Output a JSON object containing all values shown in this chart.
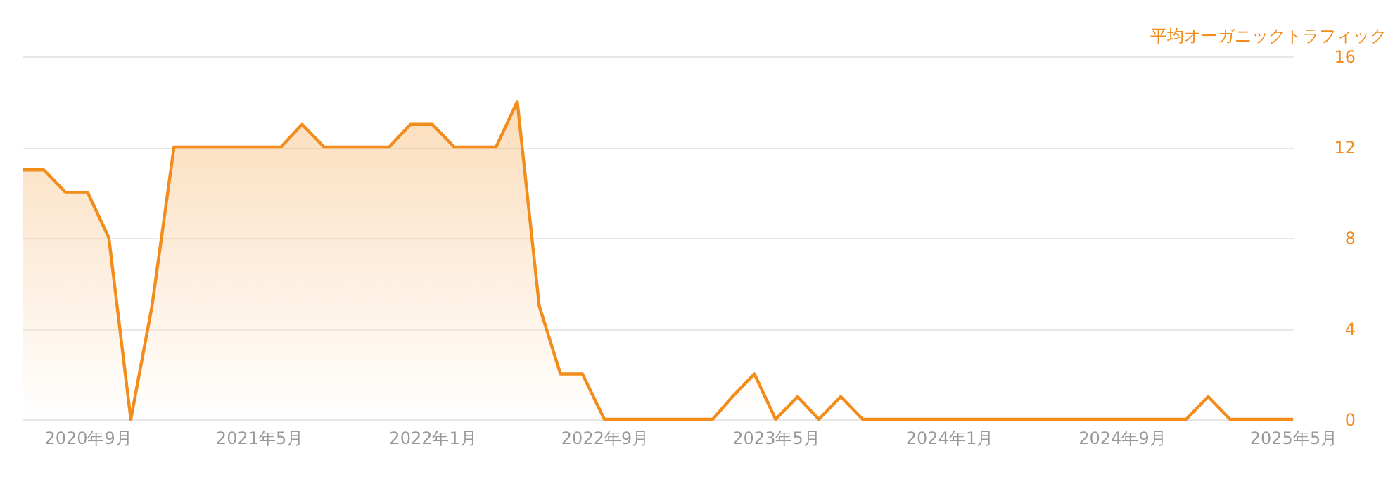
{
  "chart_data": {
    "type": "area",
    "ylabel": "平均オーガニックトラフィック",
    "x": [
      "2020-06",
      "2020-07",
      "2020-08",
      "2020-09",
      "2020-10",
      "2020-11",
      "2020-12",
      "2021-01",
      "2021-02",
      "2021-03",
      "2021-04",
      "2021-05",
      "2021-06",
      "2021-07",
      "2021-08",
      "2021-09",
      "2021-10",
      "2021-11",
      "2021-12",
      "2022-01",
      "2022-02",
      "2022-03",
      "2022-04",
      "2022-05",
      "2022-06",
      "2022-07",
      "2022-08",
      "2022-09",
      "2022-10",
      "2022-11",
      "2022-12",
      "2023-01",
      "2023-02",
      "2023-03",
      "2023-04",
      "2023-05",
      "2023-06",
      "2023-07",
      "2023-08",
      "2023-09",
      "2023-10",
      "2023-11",
      "2023-12",
      "2024-01",
      "2024-02",
      "2024-03",
      "2024-04",
      "2024-05",
      "2024-06",
      "2024-07",
      "2024-08",
      "2024-09",
      "2024-10",
      "2024-11",
      "2024-12",
      "2025-01",
      "2025-02",
      "2025-03",
      "2025-04",
      "2025-05"
    ],
    "series": [
      {
        "color": "#f28c1b",
        "values": [
          11,
          11,
          10,
          10,
          8,
          0,
          5,
          12,
          12,
          12,
          12,
          12,
          12,
          13,
          12,
          12,
          12,
          12,
          13,
          13,
          12,
          12,
          12,
          14,
          5,
          2,
          2,
          0,
          0,
          0,
          0,
          0,
          0,
          1,
          2,
          0,
          1,
          0,
          1,
          0,
          0,
          0,
          0,
          0,
          0,
          0,
          0,
          0,
          0,
          0,
          0,
          0,
          0,
          0,
          0,
          1,
          0,
          0,
          0,
          0
        ]
      }
    ],
    "xlim": [
      "2020-06",
      "2025-05"
    ],
    "xticks": [
      {
        "value": "2020-09",
        "label": "2020年9月"
      },
      {
        "value": "2021-05",
        "label": "2021年5月"
      },
      {
        "value": "2022-01",
        "label": "2022年1月"
      },
      {
        "value": "2022-09",
        "label": "2022年9月"
      },
      {
        "value": "2023-05",
        "label": "2023年5月"
      },
      {
        "value": "2024-01",
        "label": "2024年1月"
      },
      {
        "value": "2024-09",
        "label": "2024年9月"
      },
      {
        "value": "2025-05",
        "label": "2025年5月"
      }
    ],
    "ylim": [
      0,
      16
    ],
    "yticks": [
      0,
      4,
      8,
      12,
      16
    ],
    "grid": "y"
  }
}
